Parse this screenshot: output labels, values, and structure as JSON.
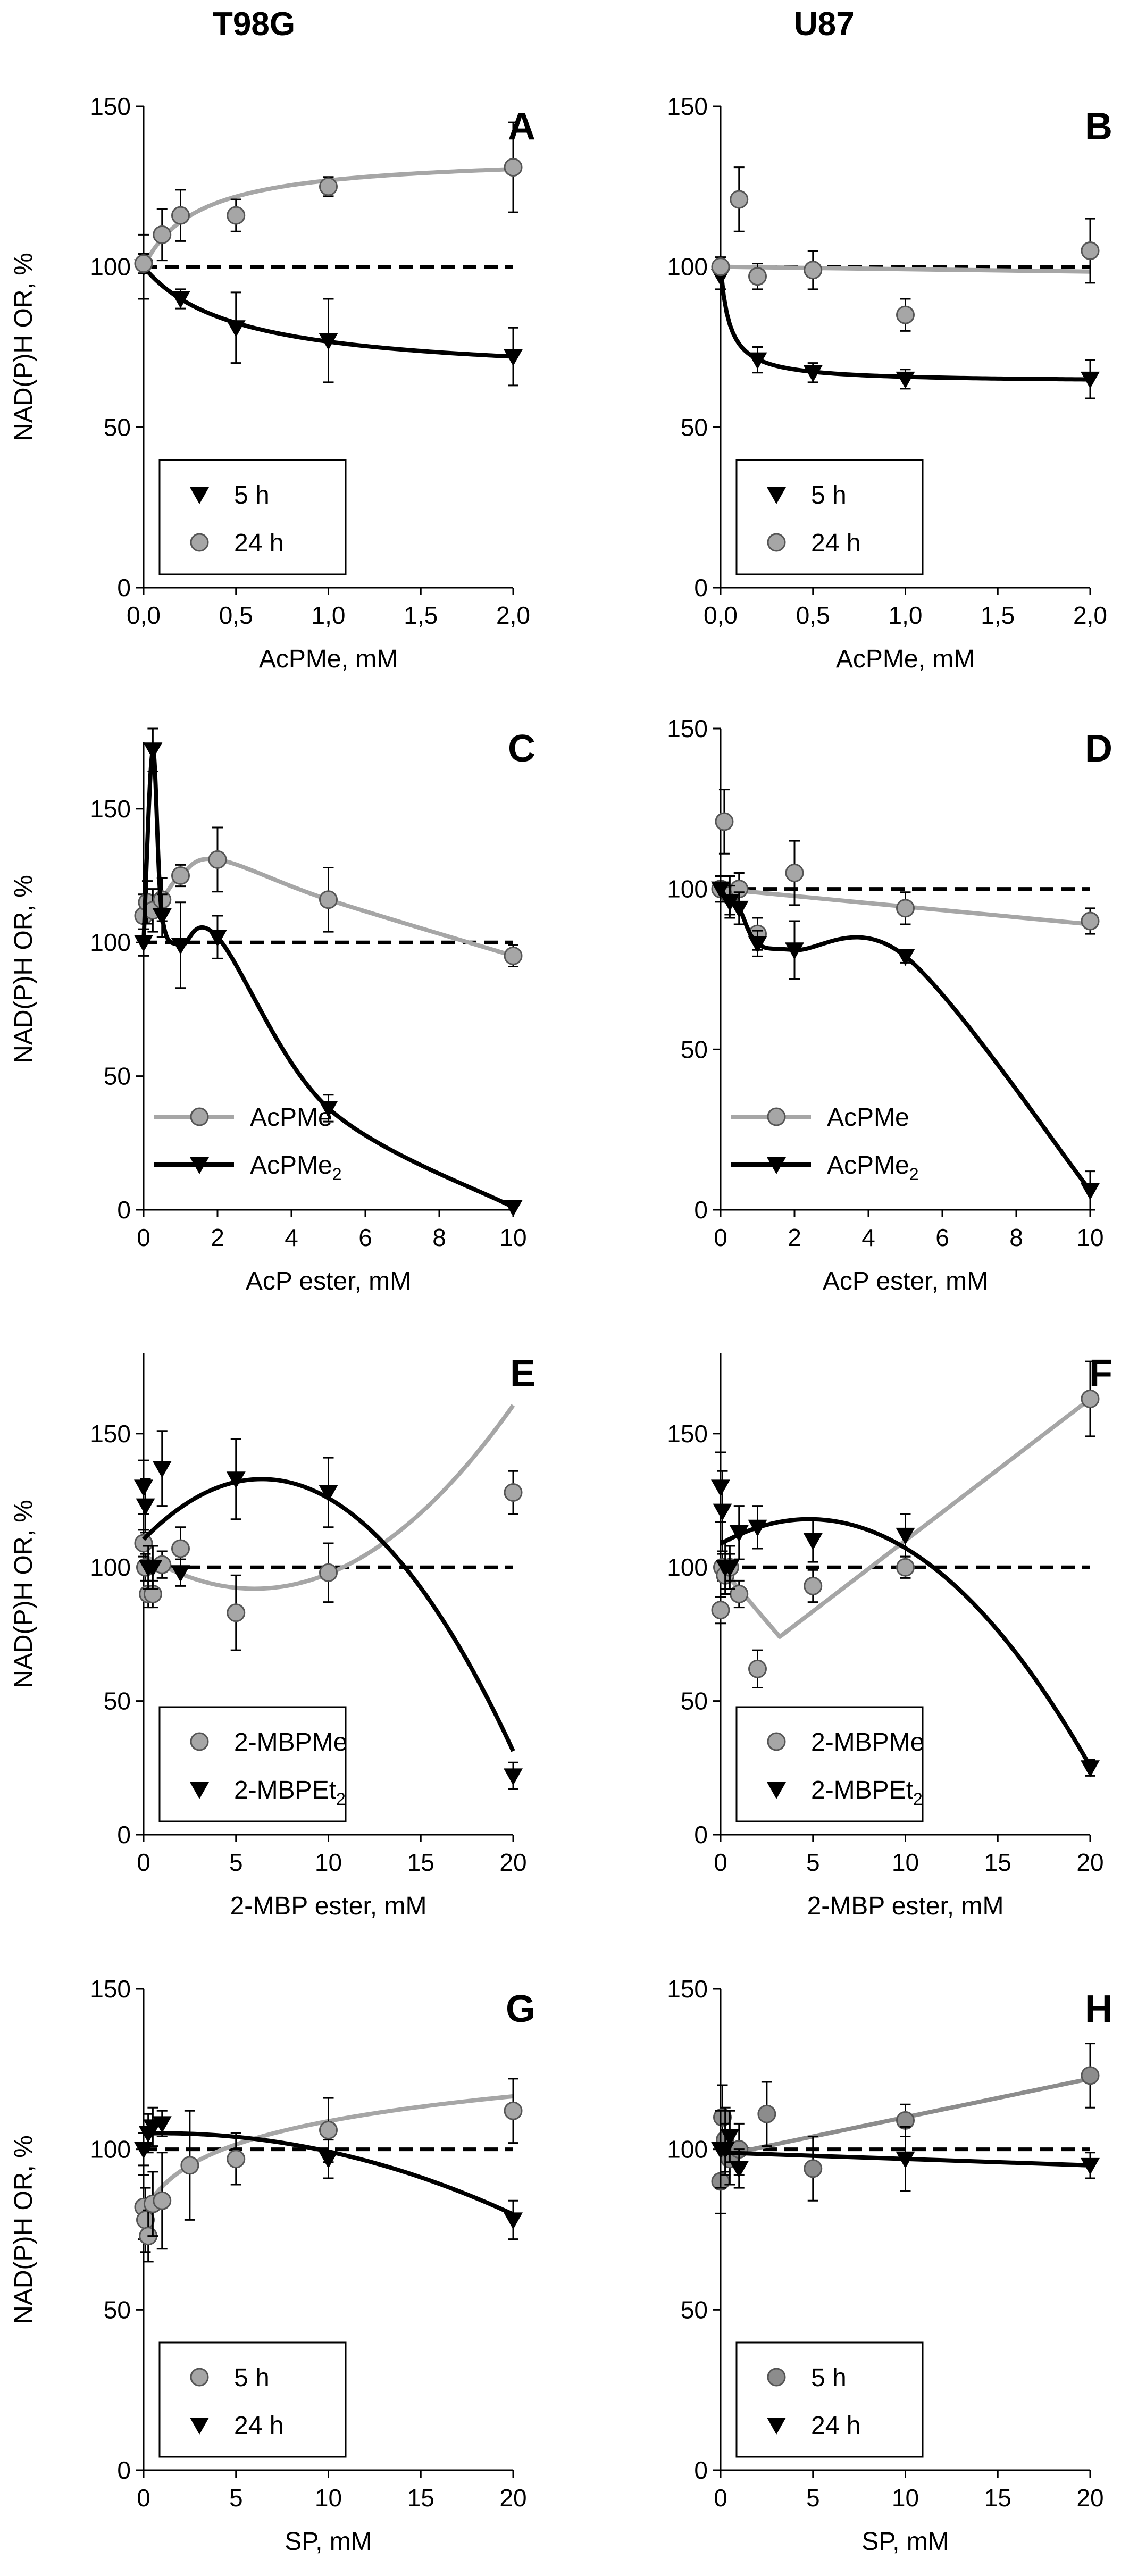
{
  "headers": {
    "left": "T98G",
    "right": "U87"
  },
  "colors": {
    "black": "#000000",
    "gray": "#a6a6a6",
    "gray_dark": "#8c8c8c",
    "dashed": "#000000"
  },
  "chart_data": [
    {
      "panel": "A",
      "type": "scatter",
      "cell_line": "T98G",
      "ylabel": "NAD(P)H OR, %",
      "xlabel": "AcPMe, mM",
      "xlim": [
        0,
        2
      ],
      "xticks": [
        0,
        0.5,
        1,
        1.5,
        2
      ],
      "xtick_labels": [
        "0,0",
        "0,5",
        "1,0",
        "1,5",
        "2,0"
      ],
      "ylim": [
        0,
        150
      ],
      "yticks": [
        0,
        50,
        100,
        150
      ],
      "yticks_shown": [
        0,
        50,
        100,
        150
      ],
      "yaxis_top": 150,
      "reference_line": 100,
      "legend_pos": "bottom-left",
      "series": [
        {
          "name": "5 h",
          "marker": "triangle",
          "color": "black",
          "x": [
            0,
            0.2,
            0.5,
            1,
            2
          ],
          "y": [
            100,
            90,
            81,
            77,
            72
          ],
          "err": [
            10,
            3,
            11,
            13,
            9
          ],
          "fit": {
            "kind": "hyper",
            "base": 100,
            "a": -35,
            "k": 0.5
          }
        },
        {
          "name": "24 h",
          "marker": "circle",
          "color": "gray",
          "x": [
            0,
            0.1,
            0.2,
            0.5,
            1,
            2
          ],
          "y": [
            101,
            110,
            116,
            116,
            125,
            131
          ],
          "err": [
            3,
            8,
            8,
            5,
            3,
            14
          ],
          "fit": {
            "kind": "hyper",
            "base": 100,
            "a": 35,
            "k": 0.3
          }
        }
      ]
    },
    {
      "panel": "B",
      "type": "scatter",
      "cell_line": "U87",
      "ylabel": "",
      "xlabel": "AcPMe, mM",
      "xlim": [
        0,
        2
      ],
      "xticks": [
        0,
        0.5,
        1,
        1.5,
        2
      ],
      "xtick_labels": [
        "0,0",
        "0,5",
        "1,0",
        "1,5",
        "2,0"
      ],
      "ylim": [
        0,
        150
      ],
      "yticks": [
        0,
        50,
        100,
        150
      ],
      "yticks_shown": [
        0,
        50,
        100,
        150
      ],
      "yaxis_top": 150,
      "reference_line": 100,
      "legend_pos": "bottom-left",
      "series": [
        {
          "name": "5 h",
          "marker": "triangle",
          "color": "black",
          "x": [
            0,
            0.2,
            0.5,
            1,
            2
          ],
          "y": [
            97,
            71,
            67,
            65,
            65
          ],
          "err": [
            4,
            4,
            3,
            3,
            6
          ],
          "fit": {
            "kind": "hyper",
            "base": 100,
            "a": -36,
            "k": 0.05
          }
        },
        {
          "name": "24 h",
          "marker": "circle",
          "color": "gray",
          "x": [
            0,
            0.1,
            0.2,
            0.5,
            1,
            2
          ],
          "y": [
            100,
            121,
            97,
            99,
            85,
            105
          ],
          "err": [
            3,
            10,
            4,
            6,
            5,
            10
          ],
          "fit": {
            "kind": "linear",
            "x0": 0,
            "y0": 100,
            "x1": 2,
            "y1": 98.5
          }
        }
      ]
    },
    {
      "panel": "C",
      "type": "line",
      "cell_line": "T98G",
      "ylabel": "NAD(P)H OR, %",
      "xlabel": "AcP ester, mM",
      "xlim": [
        0,
        10
      ],
      "xticks": [
        0,
        2,
        4,
        6,
        8,
        10
      ],
      "xtick_labels": [
        "0",
        "2",
        "4",
        "6",
        "8",
        "10"
      ],
      "ylim": [
        0,
        180
      ],
      "yticks": [
        0,
        50,
        100,
        150
      ],
      "yticks_shown": [
        0,
        50,
        100,
        150
      ],
      "yaxis_top": 175,
      "reference_line": 100,
      "legend_pos": "bottom-left",
      "series": [
        {
          "name": "AcPMe",
          "marker": "circle",
          "color": "gray",
          "x": [
            0,
            0.1,
            0.25,
            0.5,
            1,
            2,
            5,
            10
          ],
          "y": [
            110,
            115,
            112,
            116,
            125,
            131,
            116,
            95
          ],
          "err": [
            8,
            8,
            8,
            8,
            4,
            12,
            12,
            4
          ],
          "fit": {
            "kind": "poly",
            "px": [
              0,
              0.1,
              0.25,
              0.5,
              1,
              2,
              5,
              10
            ],
            "py": [
              110,
              115,
              112,
              116,
              125,
              131,
              116,
              95
            ]
          }
        },
        {
          "name": "AcPMe2",
          "legend_main": "AcPMe",
          "legend_sub": "2",
          "marker": "triangle",
          "color": "black",
          "x": [
            0,
            0.25,
            0.5,
            1,
            2,
            5,
            10
          ],
          "y": [
            100,
            172,
            110,
            99,
            102,
            38,
            1
          ],
          "err": [
            5,
            8,
            8,
            16,
            8,
            5,
            0
          ],
          "fit": {
            "kind": "poly",
            "px": [
              0,
              0.25,
              0.5,
              1,
              2,
              5,
              10
            ],
            "py": [
              100,
              172,
              110,
              99,
              102,
              38,
              1
            ]
          }
        }
      ]
    },
    {
      "panel": "D",
      "type": "line",
      "cell_line": "U87",
      "ylabel": "",
      "xlabel": "AcP ester, mM",
      "xlim": [
        0,
        10
      ],
      "xticks": [
        0,
        2,
        4,
        6,
        8,
        10
      ],
      "xtick_labels": [
        "0",
        "2",
        "4",
        "6",
        "8",
        "10"
      ],
      "ylim": [
        0,
        150
      ],
      "yticks": [
        0,
        50,
        100,
        150
      ],
      "yticks_shown": [
        0,
        50,
        100,
        150
      ],
      "yaxis_top": 150,
      "reference_line": 100,
      "legend_pos": "bottom-left",
      "series": [
        {
          "name": "AcPMe",
          "marker": "circle",
          "color": "gray",
          "x": [
            0,
            0.1,
            0.25,
            0.5,
            1,
            2,
            5,
            10
          ],
          "y": [
            100,
            121,
            98,
            100,
            86,
            105,
            94,
            90
          ],
          "err": [
            4,
            10,
            6,
            5,
            5,
            10,
            5,
            4
          ],
          "fit": {
            "kind": "linear",
            "x0": 0,
            "y0": 100,
            "x1": 10,
            "y1": 89
          }
        },
        {
          "name": "AcPMe2",
          "legend_main": "AcPMe",
          "legend_sub": "2",
          "marker": "triangle",
          "color": "black",
          "x": [
            0,
            0.25,
            0.5,
            1,
            2,
            5,
            10
          ],
          "y": [
            100,
            96,
            94,
            83,
            81,
            79,
            6
          ],
          "err": [
            4,
            5,
            5,
            4,
            9,
            2,
            6
          ],
          "fit": {
            "kind": "poly",
            "px": [
              0,
              0.25,
              0.5,
              1,
              2,
              5,
              10
            ],
            "py": [
              100,
              96,
              94,
              83,
              81,
              79,
              6
            ]
          }
        }
      ]
    },
    {
      "panel": "E",
      "type": "scatter",
      "cell_line": "T98G",
      "ylabel": "NAD(P)H OR, %",
      "xlabel": "2-MBP ester, mM",
      "xlim": [
        0,
        20
      ],
      "xticks": [
        0,
        5,
        10,
        15,
        20
      ],
      "xtick_labels": [
        "0",
        "5",
        "10",
        "15",
        "20"
      ],
      "ylim": [
        0,
        180
      ],
      "yticks": [
        0,
        50,
        100,
        150
      ],
      "yticks_shown": [
        0,
        50,
        100,
        150
      ],
      "yaxis_top": 180,
      "reference_line": 100,
      "legend_pos": "bottom-left",
      "series": [
        {
          "name": "2-MBPMe",
          "marker": "circle",
          "color": "gray",
          "x": [
            0,
            0.1,
            0.25,
            0.5,
            1,
            2,
            5,
            10,
            20
          ],
          "y": [
            109,
            100,
            90,
            90,
            101,
            107,
            83,
            98,
            128
          ],
          "err": [
            5,
            5,
            5,
            5,
            5,
            8,
            14,
            11,
            8
          ],
          "fit": {
            "kind": "quad",
            "a": 0.35,
            "h": 6,
            "k": 92,
            "x0": 0,
            "x1": 20
          }
        },
        {
          "name": "2-MBPEt2",
          "legend_main": "2-MBPEt",
          "legend_sub": "2",
          "marker": "triangle",
          "color": "black",
          "x": [
            0,
            0.1,
            0.25,
            0.5,
            1,
            2,
            5,
            10,
            20
          ],
          "y": [
            130,
            123,
            100,
            100,
            137,
            98,
            133,
            128,
            22
          ],
          "err": [
            10,
            10,
            8,
            8,
            14,
            5,
            15,
            13,
            5
          ],
          "fit": {
            "kind": "quad",
            "a": -0.55,
            "h": 6.4,
            "k": 133,
            "x0": 0,
            "x1": 20
          }
        }
      ]
    },
    {
      "panel": "F",
      "type": "scatter",
      "cell_line": "U87",
      "ylabel": "",
      "xlabel": "2-MBP ester, mM",
      "xlim": [
        0,
        20
      ],
      "xticks": [
        0,
        5,
        10,
        15,
        20
      ],
      "xtick_labels": [
        "0",
        "5",
        "10",
        "15",
        "20"
      ],
      "ylim": [
        0,
        180
      ],
      "yticks": [
        0,
        50,
        100,
        150
      ],
      "yticks_shown": [
        0,
        50,
        100,
        150
      ],
      "yaxis_top": 180,
      "reference_line": 100,
      "legend_pos": "bottom-left",
      "series": [
        {
          "name": "2-MBPMe",
          "marker": "circle",
          "color": "gray",
          "x": [
            0,
            0.1,
            0.25,
            0.5,
            1,
            2,
            5,
            10,
            20
          ],
          "y": [
            84,
            100,
            97,
            100,
            90,
            62,
            93,
            100,
            163
          ],
          "err": [
            5,
            5,
            5,
            5,
            5,
            7,
            6,
            4,
            14
          ],
          "fit": {
            "kind": "poly",
            "px": [
              0,
              3.2,
              20
            ],
            "py": [
              100,
              74,
              163
            ]
          }
        },
        {
          "name": "2-MBPEt2",
          "legend_main": "2-MBPEt",
          "legend_sub": "2",
          "marker": "triangle",
          "color": "black",
          "x": [
            0,
            0.1,
            0.25,
            0.5,
            1,
            2,
            5,
            10,
            20
          ],
          "y": [
            130,
            121,
            100,
            100,
            113,
            115,
            110,
            112,
            25
          ],
          "err": [
            13,
            15,
            10,
            8,
            10,
            8,
            8,
            8,
            3
          ],
          "fit": {
            "kind": "quad",
            "a": -0.4,
            "h": 4.8,
            "k": 118,
            "x0": 0,
            "x1": 20
          }
        }
      ]
    },
    {
      "panel": "G",
      "type": "scatter",
      "cell_line": "T98G",
      "ylabel": "NAD(P)H OR, %",
      "xlabel": "SP, mM",
      "xlim": [
        0,
        20
      ],
      "xticks": [
        0,
        5,
        10,
        15,
        20
      ],
      "xtick_labels": [
        "0",
        "5",
        "10",
        "15",
        "20"
      ],
      "ylim": [
        0,
        150
      ],
      "yticks": [
        0,
        50,
        100,
        150
      ],
      "yticks_shown": [
        0,
        50,
        100,
        150
      ],
      "yaxis_top": 150,
      "reference_line": 100,
      "legend_pos": "bottom-left",
      "series": [
        {
          "name": "5 h",
          "marker": "circle",
          "color": "gray",
          "x": [
            0,
            0.1,
            0.25,
            0.5,
            1,
            2.5,
            5,
            10,
            20
          ],
          "y": [
            82,
            78,
            73,
            83,
            84,
            95,
            97,
            106,
            112
          ],
          "err": [
            10,
            10,
            8,
            10,
            15,
            17,
            8,
            10,
            10
          ],
          "fit": {
            "kind": "log",
            "a": 80,
            "b": 12,
            "x0": 0,
            "x1": 20
          }
        },
        {
          "name": "24 h",
          "marker": "triangle",
          "color": "black",
          "x": [
            0,
            0.25,
            0.5,
            1,
            10,
            20
          ],
          "y": [
            100,
            105,
            107,
            108,
            97,
            78
          ],
          "err": [
            5,
            6,
            6,
            4,
            6,
            6
          ],
          "fit": {
            "kind": "quad",
            "a": -0.07,
            "h": 1,
            "k": 105,
            "x0": 0,
            "x1": 20
          }
        }
      ]
    },
    {
      "panel": "H",
      "type": "scatter",
      "cell_line": "U87",
      "ylabel": "",
      "xlabel": "SP, mM",
      "xlim": [
        0,
        20
      ],
      "xticks": [
        0,
        5,
        10,
        15,
        20
      ],
      "xtick_labels": [
        "0",
        "5",
        "10",
        "15",
        "20"
      ],
      "ylim": [
        0,
        150
      ],
      "yticks": [
        0,
        50,
        100,
        150
      ],
      "yticks_shown": [
        0,
        50,
        100,
        150
      ],
      "yaxis_top": 150,
      "reference_line": 100,
      "legend_pos": "bottom-left",
      "series": [
        {
          "name": "5 h",
          "marker": "circle",
          "color": "gray_dark",
          "x": [
            0,
            0.1,
            0.25,
            0.5,
            1,
            2.5,
            5,
            10,
            20
          ],
          "y": [
            90,
            110,
            103,
            97,
            100,
            111,
            94,
            109,
            123
          ],
          "err": [
            10,
            10,
            10,
            8,
            8,
            10,
            10,
            5,
            10
          ],
          "fit": {
            "kind": "linear",
            "x0": 0,
            "y0": 98,
            "x1": 20,
            "y1": 122
          }
        },
        {
          "name": "24 h",
          "marker": "triangle",
          "color": "black",
          "x": [
            0,
            0.25,
            0.5,
            1,
            10,
            20
          ],
          "y": [
            100,
            100,
            104,
            94,
            97,
            95
          ],
          "err": [
            12,
            8,
            8,
            6,
            10,
            4
          ],
          "fit": {
            "kind": "linear",
            "x0": 0,
            "y0": 99,
            "x1": 20,
            "y1": 95
          }
        }
      ]
    }
  ]
}
